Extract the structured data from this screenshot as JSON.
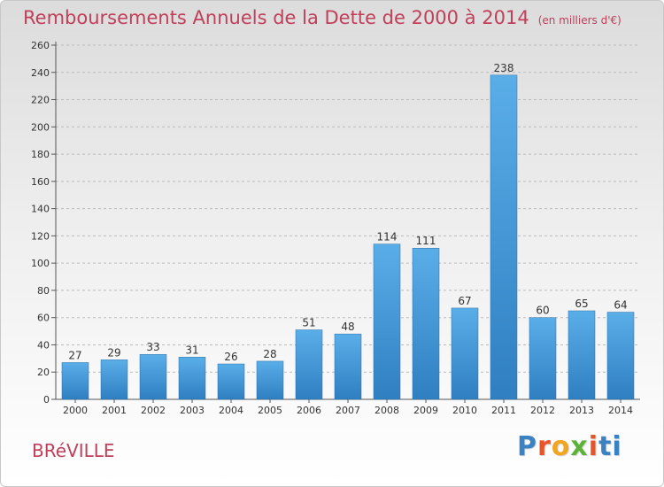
{
  "header": {
    "title": "Remboursements Annuels de la Dette de 2000 à 2014",
    "unit_note": "(en milliers d'€)"
  },
  "footer": {
    "commune": "BRéVILLE",
    "brand": "Proxiti",
    "brand_colors": [
      "#3a82c4",
      "#e8542a",
      "#f2a521",
      "#5db33a",
      "#e8542a",
      "#3a82c4"
    ]
  },
  "colors": {
    "bar_top": "#5aaee8",
    "bar_bottom": "#2f7fc1",
    "title": "#c0405a",
    "grid": "#bbbbbb",
    "axis": "#555555"
  },
  "chart_data": {
    "type": "bar",
    "title": "Remboursements Annuels de la Dette de 2000 à 2014",
    "xlabel": "",
    "ylabel": "",
    "categories": [
      "2000",
      "2001",
      "2002",
      "2003",
      "2004",
      "2005",
      "2006",
      "2007",
      "2008",
      "2009",
      "2010",
      "2011",
      "2012",
      "2013",
      "2014"
    ],
    "values": [
      27,
      29,
      33,
      31,
      26,
      28,
      51,
      48,
      114,
      111,
      67,
      238,
      60,
      65,
      64
    ],
    "ylim": [
      0,
      260
    ],
    "yticks": [
      0,
      20,
      40,
      60,
      80,
      100,
      120,
      140,
      160,
      180,
      200,
      220,
      240,
      260
    ],
    "grid": true,
    "data_labels": true
  }
}
